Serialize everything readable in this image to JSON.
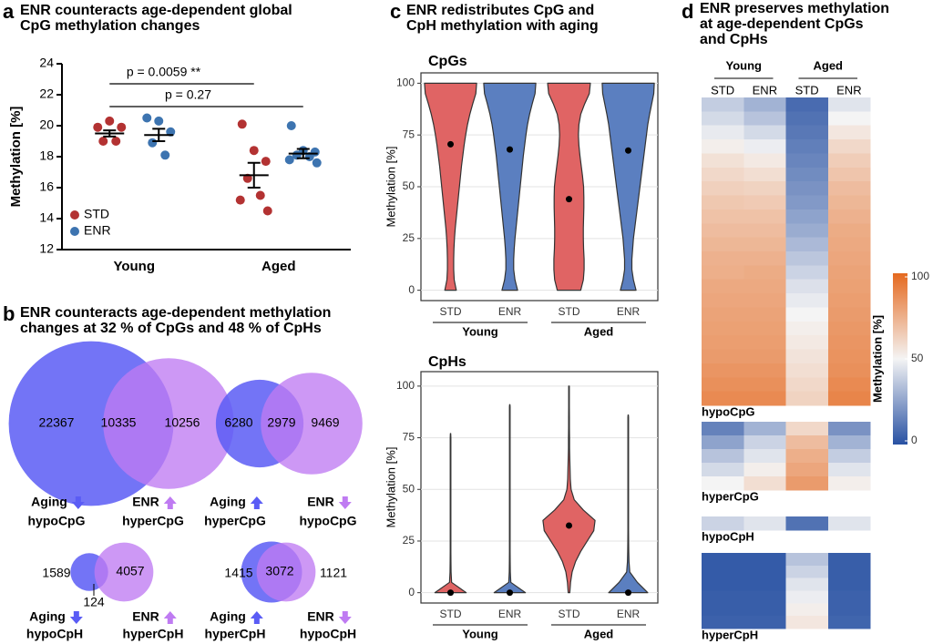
{
  "chart_data": [
    {
      "type": "dot",
      "panel": "a",
      "title": [
        "ENR counteracts age-dependent global",
        "CpG methylation changes"
      ],
      "ylabel": "Methylation [%]",
      "categories": [
        "Young",
        "Aged"
      ],
      "ylim": [
        12,
        24
      ],
      "yticks": [
        12,
        14,
        16,
        18,
        20,
        22,
        24
      ],
      "legend": "lower-left",
      "series": [
        {
          "name": "STD",
          "color": "#b33232",
          "values": [
            [
              19.9,
              20.3,
              19.9,
              19.0,
              19.0
            ],
            [
              20.1,
              18.4,
              17.7,
              16.6,
              15.5,
              15.2,
              14.5
            ]
          ],
          "means": [
            19.5,
            16.8
          ],
          "sem": [
            0.2,
            0.8
          ]
        },
        {
          "name": "ENR",
          "color": "#3d74b0",
          "values": [
            [
              20.5,
              20.3,
              19.6,
              18.9,
              18.1
            ],
            [
              20.0,
              18.4,
              18.3,
              18.1,
              18.0,
              17.8,
              17.6
            ]
          ],
          "means": [
            19.4,
            18.2
          ],
          "sem": [
            0.4,
            0.3
          ]
        }
      ],
      "annotations": [
        "p = 0.0059 **",
        "p = 0.27"
      ]
    },
    {
      "type": "venn",
      "panel": "b",
      "title": [
        "ENR counteracts age-dependent methylation",
        "changes at 32 % of CpGs and 48 % of CpHs"
      ],
      "diagrams": [
        {
          "sets": [
            {
              "name": "Aging",
              "label": "hypoCpG",
              "color": "#5a5cf5"
            },
            {
              "name": "ENR",
              "label": "hyperCpG",
              "color": "#bf7bf2"
            }
          ],
          "values": [
            22367,
            10335,
            10256
          ]
        },
        {
          "sets": [
            {
              "name": "Aging",
              "label": "hyperCpG",
              "color": "#5a5cf5"
            },
            {
              "name": "ENR",
              "label": "hypoCpG",
              "color": "#bf7bf2"
            }
          ],
          "values": [
            6280,
            2979,
            9469
          ]
        },
        {
          "sets": [
            {
              "name": "Aging",
              "label": "hypoCpH",
              "color": "#5a5cf5"
            },
            {
              "name": "ENR",
              "label": "hyperCpH",
              "color": "#bf7bf2"
            }
          ],
          "values": [
            1589,
            124,
            4057
          ]
        },
        {
          "sets": [
            {
              "name": "Aging",
              "label": "hyperCpH",
              "color": "#5a5cf5"
            },
            {
              "name": "ENR",
              "label": "hypoCpH",
              "color": "#bf7bf2"
            }
          ],
          "values": [
            1415,
            3072,
            1121
          ]
        }
      ]
    },
    {
      "type": "violin",
      "panel": "c",
      "title": [
        "ENR redistributes CpG and",
        "CpH methylation with aging"
      ],
      "subtitle": "CpGs",
      "ylabel": "Methylation [%]",
      "categories": [
        "STD",
        "ENR",
        "STD",
        "ENR"
      ],
      "groups": [
        "Young",
        "Aged"
      ],
      "ylim": [
        -5,
        105
      ],
      "yticks": [
        0,
        25,
        50,
        75,
        100
      ],
      "grid": true,
      "density_at": [
        0,
        5,
        10,
        15,
        20,
        25,
        30,
        35,
        40,
        45,
        50,
        55,
        60,
        65,
        70,
        75,
        80,
        85,
        90,
        95,
        100
      ],
      "violins": [
        {
          "color": "#e06464",
          "median": 70.5,
          "range": [
            0,
            100
          ],
          "density": [
            0.22,
            0.14,
            0.12,
            0.12,
            0.13,
            0.15,
            0.18,
            0.22,
            0.26,
            0.3,
            0.34,
            0.38,
            0.42,
            0.47,
            0.52,
            0.58,
            0.65,
            0.74,
            0.85,
            0.97,
            1.0
          ]
        },
        {
          "color": "#5b7fc0",
          "median": 68,
          "range": [
            0,
            100
          ],
          "density": [
            0.3,
            0.2,
            0.15,
            0.15,
            0.17,
            0.2,
            0.24,
            0.28,
            0.32,
            0.36,
            0.4,
            0.44,
            0.48,
            0.52,
            0.57,
            0.62,
            0.68,
            0.76,
            0.86,
            0.97,
            1.0
          ]
        },
        {
          "color": "#e06464",
          "median": 44,
          "range": [
            0,
            100
          ],
          "density": [
            0.45,
            0.55,
            0.58,
            0.58,
            0.56,
            0.55,
            0.55,
            0.56,
            0.57,
            0.57,
            0.56,
            0.52,
            0.47,
            0.42,
            0.38,
            0.36,
            0.38,
            0.45,
            0.6,
            0.78,
            0.82
          ]
        },
        {
          "color": "#5b7fc0",
          "median": 67.5,
          "range": [
            0,
            100
          ],
          "density": [
            0.3,
            0.2,
            0.14,
            0.14,
            0.17,
            0.2,
            0.25,
            0.3,
            0.35,
            0.4,
            0.45,
            0.5,
            0.55,
            0.6,
            0.65,
            0.7,
            0.75,
            0.82,
            0.9,
            0.98,
            1.0
          ]
        }
      ]
    },
    {
      "type": "violin",
      "subtitle": "CpHs",
      "ylabel": "Methylation [%]",
      "categories": [
        "STD",
        "ENR",
        "STD",
        "ENR"
      ],
      "groups": [
        "Young",
        "Aged"
      ],
      "ylim": [
        -5,
        107
      ],
      "yticks": [
        0,
        25,
        50,
        75,
        100
      ],
      "grid": true,
      "density_at": [
        0,
        5,
        10,
        15,
        20,
        25,
        30,
        35,
        40,
        45,
        50,
        55,
        60,
        65,
        70,
        75,
        80,
        85,
        90,
        95,
        100
      ],
      "violins": [
        {
          "color": "#e06464",
          "median": 0,
          "range": [
            0,
            77
          ],
          "density": [
            0.6,
            0.04,
            0.02,
            0.015,
            0.01,
            0.01,
            0.01,
            0.01,
            0.01,
            0.01,
            0.01,
            0.01,
            0.01,
            0.01,
            0.01,
            0.01,
            0,
            0,
            0,
            0,
            0
          ]
        },
        {
          "color": "#5b7fc0",
          "median": 0,
          "range": [
            0,
            91
          ],
          "density": [
            0.6,
            0.04,
            0.02,
            0.015,
            0.01,
            0.01,
            0.01,
            0.01,
            0.01,
            0.01,
            0.01,
            0.01,
            0.01,
            0.01,
            0.01,
            0.01,
            0.01,
            0.01,
            0.01,
            0,
            0
          ]
        },
        {
          "color": "#e06464",
          "median": 32.5,
          "range": [
            0,
            100
          ],
          "density": [
            0.03,
            0.06,
            0.12,
            0.25,
            0.45,
            0.7,
            0.95,
            1.0,
            0.55,
            0.2,
            0.08,
            0.05,
            0.04,
            0.03,
            0.02,
            0.02,
            0.015,
            0.015,
            0.01,
            0.01,
            0.01
          ]
        },
        {
          "color": "#5b7fc0",
          "median": 0,
          "range": [
            0,
            86
          ],
          "density": [
            0.75,
            0.35,
            0.06,
            0.03,
            0.02,
            0.015,
            0.01,
            0.01,
            0.01,
            0.01,
            0.01,
            0.01,
            0.01,
            0.01,
            0.01,
            0.01,
            0.01,
            0.01,
            0,
            0,
            0
          ]
        }
      ]
    },
    {
      "type": "heatmap",
      "panel": "d",
      "title": [
        "ENR preserves methylation",
        "at age-dependent CpGs",
        "and CpHs"
      ],
      "columns": [
        "STD",
        "ENR",
        "STD",
        "ENR"
      ],
      "groups": [
        "Young",
        "Aged"
      ],
      "colors": [
        "#2851a3",
        "#f4f4f4",
        "#e5691f"
      ],
      "zlim": [
        0,
        100
      ],
      "zticks": [
        0,
        50,
        100
      ],
      "zlabel": "Methylation [%]",
      "blocks": [
        {
          "name": "hypoCpG",
          "rows": [
            [
              38,
              30,
              8,
              45
            ],
            [
              42,
              35,
              10,
              50
            ],
            [
              47,
              42,
              12,
              55
            ],
            [
              52,
              48,
              14,
              60
            ],
            [
              57,
              54,
              16,
              64
            ],
            [
              60,
              58,
              18,
              67
            ],
            [
              63,
              62,
              20,
              70
            ],
            [
              66,
              65,
              22,
              72
            ],
            [
              68,
              68,
              25,
              74
            ],
            [
              70,
              70,
              28,
              76
            ],
            [
              72,
              72,
              32,
              77
            ],
            [
              74,
              74,
              36,
              78
            ],
            [
              75,
              76,
              40,
              79
            ],
            [
              77,
              77,
              44,
              80
            ],
            [
              78,
              78,
              47,
              81
            ],
            [
              79,
              79,
              50,
              82
            ],
            [
              80,
              80,
              52,
              83
            ],
            [
              81,
              81,
              54,
              84
            ],
            [
              82,
              82,
              56,
              85
            ],
            [
              84,
              84,
              58,
              86
            ],
            [
              86,
              86,
              60,
              88
            ],
            [
              88,
              88,
              62,
              90
            ]
          ]
        },
        {
          "name": "hyperCpG",
          "rows": [
            [
              15,
              30,
              60,
              20
            ],
            [
              25,
              40,
              70,
              30
            ],
            [
              35,
              45,
              75,
              38
            ],
            [
              42,
              52,
              78,
              45
            ],
            [
              50,
              58,
              82,
              52
            ]
          ]
        },
        {
          "name": "hypoCpH",
          "rows": [
            [
              40,
              45,
              10,
              45
            ]
          ]
        },
        {
          "name": "hyperCpH",
          "rows": [
            [
              3,
              3,
              35,
              4
            ],
            [
              3,
              3,
              40,
              4
            ],
            [
              3,
              3,
              45,
              4
            ],
            [
              4,
              4,
              48,
              5
            ],
            [
              4,
              4,
              52,
              5
            ],
            [
              5,
              5,
              55,
              6
            ]
          ]
        }
      ]
    }
  ]
}
